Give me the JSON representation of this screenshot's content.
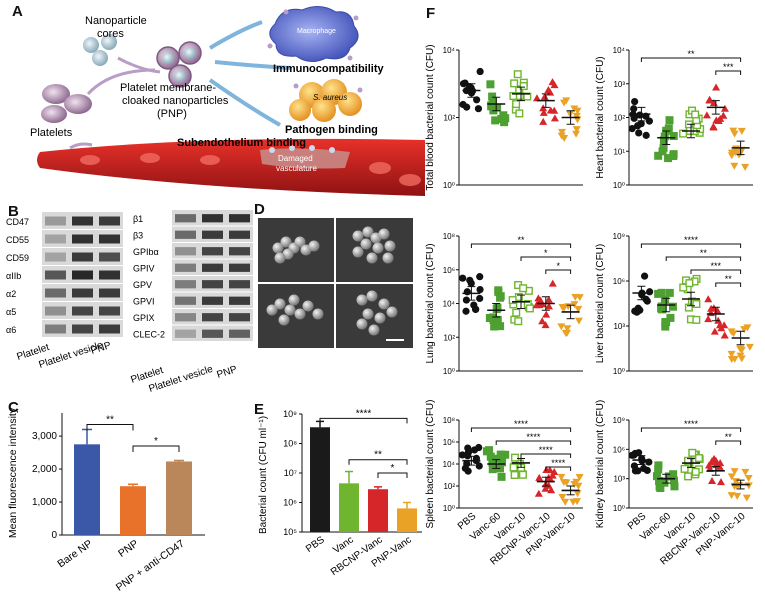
{
  "panel_labels": {
    "a": "A",
    "b": "B",
    "c": "C",
    "d": "D",
    "e": "E",
    "f": "F"
  },
  "panel_a": {
    "nanoparticle_cores": "Nanoparticle",
    "nanoparticle_cores_2": "cores",
    "pnp_line1": "Platelet membrane-",
    "pnp_line2": "cloaked nanoparticles",
    "pnp_line3": "(PNP)",
    "platelets": "Platelets",
    "macrophage": "Macrophage",
    "immunocompatibility": "Immunocompatibility",
    "s_aureus": "S. aureus",
    "pathogen_binding": "Pathogen binding",
    "subendothelium_binding": "Subendothelium binding",
    "damaged": "Damaged",
    "vasculature": "vasculature"
  },
  "panel_b": {
    "left_markers": [
      "CD47",
      "CD55",
      "CD59",
      "αIIb",
      "α2",
      "α5",
      "α6"
    ],
    "right_markers": [
      "β1",
      "β3",
      "GPIbα",
      "GPIV",
      "GPV",
      "GPVI",
      "GPIX",
      "CLEC-2"
    ],
    "lanes": [
      "Platelet",
      "Platelet vesicle",
      "PNP"
    ]
  },
  "panel_c": {
    "chart_data": {
      "type": "bar",
      "categories": [
        "Bare NP",
        "PNP",
        "PNP + anti-CD47"
      ],
      "values": [
        2750,
        1480,
        2230
      ],
      "errors": [
        450,
        60,
        30
      ],
      "ylabel": "Mean fluorescence intensity",
      "yticks": [
        "0",
        "1,000",
        "2,000",
        "3,000"
      ],
      "ylim": [
        0,
        3700
      ],
      "significance": [
        "**",
        "*"
      ],
      "colors": [
        "#3a57a8",
        "#e8722a",
        "#b9875a"
      ]
    }
  },
  "panel_e": {
    "chart_data": {
      "type": "bar",
      "categories": [
        "PBS",
        "Vanc",
        "RBCNP-Vanc",
        "PNP-Vanc"
      ],
      "values_log10": [
        8.55,
        6.65,
        6.45,
        5.8
      ],
      "errors_log10": [
        0.2,
        0.4,
        0.08,
        0.2
      ],
      "ylabel": "Bacterial count (CFU ml⁻¹)",
      "yticks": [
        "10⁵",
        "10⁶",
        "10⁷",
        "10⁸",
        "10⁹"
      ],
      "ylim_log10": [
        5,
        9
      ],
      "significance": [
        "****",
        "**",
        "*"
      ],
      "colors": [
        "#1a1a1a",
        "#6fb52f",
        "#d6262a",
        "#eaa226"
      ]
    }
  },
  "panel_f": {
    "groups": [
      "PBS",
      "Vanc-60",
      "Vanc-10",
      "RBCNP-Vanc-10",
      "PNP-Vanc-10"
    ],
    "colors": [
      "#111111",
      "#4da031",
      "#6fb52f",
      "#d6262a",
      "#eaa226"
    ],
    "subplots": [
      {
        "name": "blood",
        "ylabel": "Total blood bacterial count (CFU)",
        "yticks": [
          "10⁰",
          "10²",
          "10⁴"
        ],
        "ymax": 4,
        "means": [
          2.8,
          2.4,
          2.7,
          2.5,
          2.0
        ],
        "sig": []
      },
      {
        "name": "heart",
        "ylabel": "Heart bacterial count (CFU)",
        "yticks": [
          "10⁰",
          "10¹",
          "10²",
          "10³",
          "10⁴"
        ],
        "ymax": 4,
        "means": [
          2.1,
          1.4,
          1.6,
          2.3,
          1.1
        ],
        "sig": [
          "**",
          "***"
        ]
      },
      {
        "name": "lung",
        "ylabel": "Lung bacterial count (CFU)",
        "yticks": [
          "10⁰",
          "10²",
          "10⁴",
          "10⁶",
          "10⁸"
        ],
        "ymax": 8,
        "means": [
          4.6,
          3.6,
          4.1,
          4.0,
          3.5
        ],
        "sig": [
          "**",
          "*",
          "*"
        ]
      },
      {
        "name": "liver",
        "ylabel": "Liver bacterial count (CFU)",
        "yticks": [
          "10⁰",
          "10³",
          "10⁶",
          "10⁹"
        ],
        "ymax": 9,
        "means": [
          5.2,
          4.4,
          4.8,
          3.8,
          2.2
        ],
        "sig": [
          "****",
          "**",
          "***",
          "**"
        ]
      },
      {
        "name": "spleen",
        "ylabel": "Spleen bacterial count (CFU)",
        "yticks": [
          "10⁰",
          "10²",
          "10⁴",
          "10⁶",
          "10⁸"
        ],
        "ymax": 8,
        "means": [
          4.3,
          4.0,
          4.1,
          2.4,
          1.6
        ],
        "sig": [
          "****",
          "****",
          "****",
          "****"
        ]
      },
      {
        "name": "kidney",
        "ylabel": "Kidney bacterial count (CFU)",
        "yticks": [
          "10⁰",
          "10³",
          "10⁶",
          "10⁹"
        ],
        "ymax": 9,
        "means": [
          4.9,
          3.0,
          4.6,
          3.8,
          2.4
        ],
        "sig": [
          "****",
          "**"
        ]
      }
    ]
  }
}
